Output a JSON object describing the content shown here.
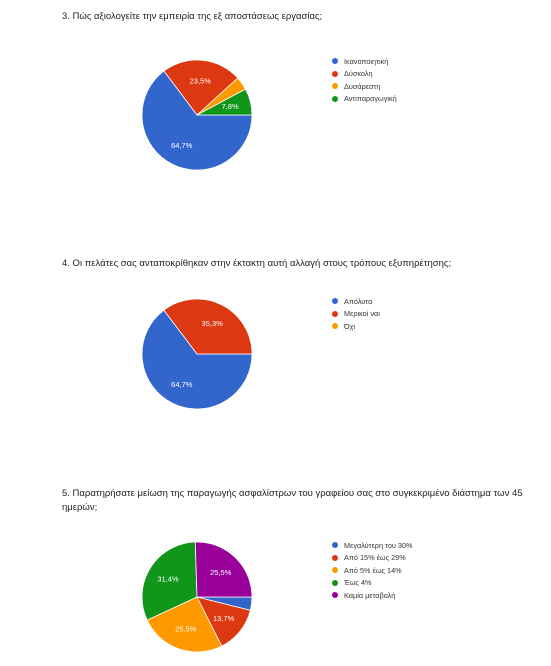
{
  "chart_data": [
    {
      "type": "pie",
      "title": "3. Πώς αξιολογείτε την εμπειρία της εξ αποστάσεως εργασίας;",
      "legend_position": "right",
      "slices": [
        {
          "label": "Ικανοποιητική",
          "value": 64.7,
          "color": "#3366cc",
          "value_label": "64,7%"
        },
        {
          "label": "Δύσκολη",
          "value": 23.5,
          "color": "#dc3912",
          "value_label": "23,5%"
        },
        {
          "label": "Δυσάρεστη",
          "value": 3.9,
          "color": "#ff9900",
          "value_label": ""
        },
        {
          "label": "Αντιπαραγωγική",
          "value": 7.8,
          "color": "#109618",
          "value_label": "7,8%"
        }
      ]
    },
    {
      "type": "pie",
      "title": "4. Οι πελάτες σας ανταποκρίθηκαν στην έκτακτη αυτή αλλαγή στους τρόπους εξυπηρέτησης;",
      "legend_position": "right",
      "slices": [
        {
          "label": "Απόλυτα",
          "value": 64.7,
          "color": "#3366cc",
          "value_label": "64,7%"
        },
        {
          "label": "Μερικοί ναι",
          "value": 35.3,
          "color": "#dc3912",
          "value_label": "35,3%"
        },
        {
          "label": "Όχι",
          "value": 0,
          "color": "#ff9900",
          "value_label": ""
        }
      ]
    },
    {
      "type": "pie",
      "title": "5. Παρατηρήσατε μείωση της παραγωγής ασφαλίστρων του γραφείου σας στο συγκεκριμένο διάστημα των 45 ημερών;",
      "legend_position": "right",
      "slices": [
        {
          "label": "Μεγαλύτερη του 30%",
          "value": 3.9,
          "color": "#3366cc",
          "value_label": ""
        },
        {
          "label": "Από 15% έως 29%",
          "value": 13.7,
          "color": "#dc3912",
          "value_label": "13,7%"
        },
        {
          "label": "Από 5% έως 14%",
          "value": 25.5,
          "color": "#ff9900",
          "value_label": "25,5%"
        },
        {
          "label": "Έως 4%",
          "value": 31.4,
          "color": "#109618",
          "value_label": "31,4%"
        },
        {
          "label": "Καμία μεταβολή",
          "value": 25.5,
          "color": "#990099",
          "value_label": "25,5%"
        }
      ]
    }
  ]
}
